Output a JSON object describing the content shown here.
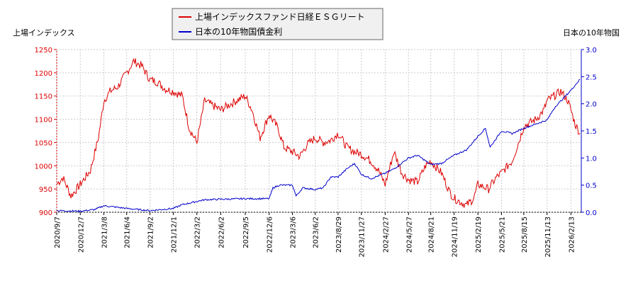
{
  "chart_data": {
    "type": "line",
    "left_axis_label": "上場インデックス",
    "right_axis_label": "日本の10年物国",
    "left_ylim": [
      900,
      1250
    ],
    "left_ticks": [
      900,
      950,
      1000,
      1050,
      1100,
      1150,
      1200,
      1250
    ],
    "right_ylim": [
      0.0,
      3.0
    ],
    "right_ticks": [
      "0.0",
      "0.5",
      "1.0",
      "1.5",
      "2.0",
      "2.5",
      "3.0"
    ],
    "x_tick_labels": [
      "2020/9/7",
      "2020/12/7",
      "2021/3/8",
      "2021/6/4",
      "2021/9/2",
      "2021/12/1",
      "2022/3/2",
      "2022/6/2",
      "2022/9/5",
      "2022/12/6",
      "2023/3/6",
      "2023/6/2",
      "2023/8/29",
      "2023/11/27",
      "2024/2/27",
      "2024/5/27",
      "2024/8/21",
      "2024/11/19",
      "2025/2/19",
      "2025/5/21",
      "2025/8/15",
      "2025/11/13",
      "2026/2/13"
    ],
    "legend_position": "top-center",
    "colors": {
      "left": "#dd0000",
      "right": "#0000cc",
      "left_axis": "#dd0000",
      "right_axis": "#0000cc"
    },
    "series": [
      {
        "name": "上場インデックスファンド日経ＥＳＧリート",
        "axis": "left",
        "color": "#dd0000",
        "x": [
          "2020/9/7",
          "2020/10/1",
          "2020/11/1",
          "2020/12/7",
          "2021/1/15",
          "2021/2/15",
          "2021/3/8",
          "2021/4/1",
          "2021/5/1",
          "2021/6/4",
          "2021/7/1",
          "2021/8/1",
          "2021/9/2",
          "2021/10/1",
          "2021/11/1",
          "2021/12/1",
          "2022/1/5",
          "2022/2/1",
          "2022/3/2",
          "2022/4/1",
          "2022/5/1",
          "2022/6/2",
          "2022/7/1",
          "2022/8/1",
          "2022/9/5",
          "2022/10/1",
          "2022/11/1",
          "2022/12/6",
          "2023/1/10",
          "2023/2/1",
          "2023/3/6",
          "2023/4/3",
          "2023/5/1",
          "2023/6/2",
          "2023/7/3",
          "2023/8/1",
          "2023/8/29",
          "2023/10/2",
          "2023/11/1",
          "2023/11/27",
          "2024/1/4",
          "2024/2/1",
          "2024/2/27",
          "2024/4/1",
          "2024/5/1",
          "2024/5/27",
          "2024/7/1",
          "2024/8/1",
          "2024/8/21",
          "2024/10/1",
          "2024/11/1",
          "2024/11/19",
          "2025/1/6",
          "2025/2/3",
          "2025/2/19",
          "2025/4/1",
          "2025/5/1",
          "2025/5/21",
          "2025/7/1",
          "2025/8/1",
          "2025/8/15",
          "2025/10/1",
          "2025/11/1",
          "2025/11/13",
          "2026/1/5",
          "2026/2/1",
          "2026/2/13",
          "2026/3/1",
          "2026/3/20"
        ],
        "values": [
          960,
          975,
          935,
          960,
          990,
          1060,
          1140,
          1160,
          1170,
          1200,
          1225,
          1215,
          1185,
          1180,
          1165,
          1160,
          1150,
          1080,
          1050,
          1140,
          1130,
          1120,
          1130,
          1140,
          1150,
          1120,
          1060,
          1110,
          1080,
          1040,
          1030,
          1020,
          1045,
          1060,
          1050,
          1055,
          1070,
          1040,
          1030,
          1025,
          1010,
          990,
          960,
          1030,
          985,
          970,
          965,
          1000,
          1010,
          985,
          945,
          930,
          915,
          930,
          960,
          950,
          975,
          985,
          1010,
          1060,
          1085,
          1100,
          1120,
          1140,
          1160,
          1140,
          1120,
          1090,
          1070
        ]
      },
      {
        "name": "日本の10年物国債金利",
        "axis": "right",
        "color": "#0000cc",
        "x": [
          "2020/9/7",
          "2020/12/7",
          "2021/2/1",
          "2021/3/8",
          "2021/5/1",
          "2021/6/4",
          "2021/9/2",
          "2021/12/1",
          "2022/1/5",
          "2022/3/2",
          "2022/4/1",
          "2022/6/2",
          "2022/9/5",
          "2022/12/6",
          "2022/12/21",
          "2023/1/15",
          "2023/3/6",
          "2023/3/20",
          "2023/4/15",
          "2023/6/2",
          "2023/7/3",
          "2023/8/1",
          "2023/8/29",
          "2023/10/2",
          "2023/11/1",
          "2023/11/27",
          "2024/1/4",
          "2024/2/27",
          "2024/4/1",
          "2024/5/27",
          "2024/7/1",
          "2024/8/21",
          "2024/10/1",
          "2024/11/19",
          "2025/1/6",
          "2025/2/19",
          "2025/3/20",
          "2025/4/7",
          "2025/5/21",
          "2025/7/1",
          "2025/8/15",
          "2025/9/15",
          "2025/11/13",
          "2025/12/15",
          "2026/1/5",
          "2026/2/13",
          "2026/3/20"
        ],
        "values": [
          0.03,
          0.02,
          0.05,
          0.12,
          0.09,
          0.07,
          0.03,
          0.07,
          0.14,
          0.2,
          0.23,
          0.24,
          0.25,
          0.25,
          0.45,
          0.5,
          0.5,
          0.3,
          0.45,
          0.42,
          0.45,
          0.65,
          0.65,
          0.8,
          0.9,
          0.7,
          0.62,
          0.72,
          0.8,
          1.0,
          1.05,
          0.88,
          0.9,
          1.05,
          1.15,
          1.4,
          1.55,
          1.2,
          1.5,
          1.45,
          1.55,
          1.6,
          1.7,
          1.95,
          2.05,
          2.25,
          2.45
        ]
      }
    ]
  }
}
